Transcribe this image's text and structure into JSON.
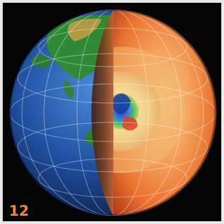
{
  "figure": {
    "number_label": "12"
  },
  "illustration": {
    "subject": "earth-cross-section",
    "icon": "earth-cutaway-icon",
    "colors": {
      "ocean": "#1f4f9f",
      "land": "#2f8a36",
      "mantle": "#e9712e",
      "core": "#f2d18b",
      "background": "#050505",
      "label": "#f08a1d"
    }
  }
}
